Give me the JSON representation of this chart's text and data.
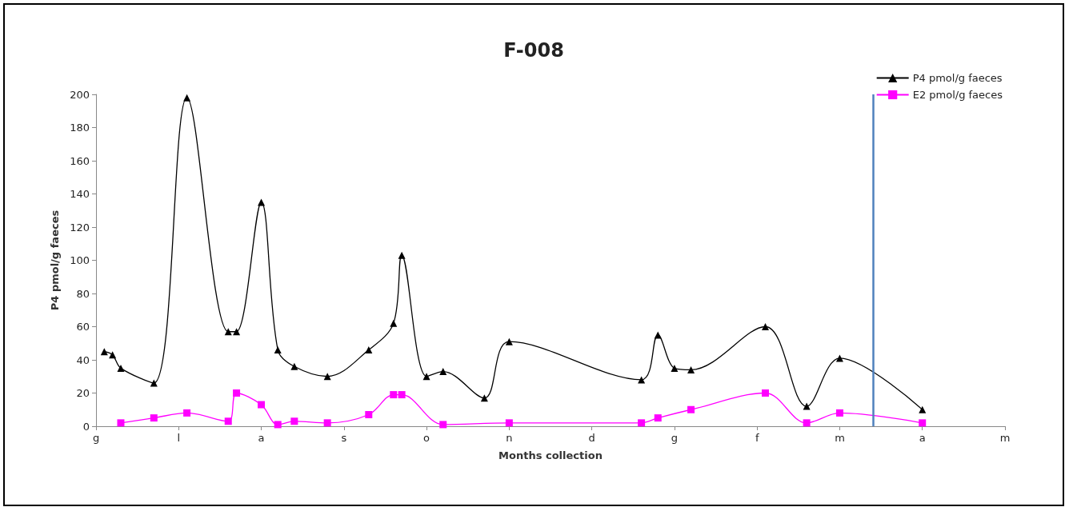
{
  "chart_data": {
    "type": "line",
    "title": "F-008",
    "xlabel": "Months collection",
    "ylabel": "P4 pmol/g faeces",
    "categories": [
      "g",
      null,
      null,
      null,
      null,
      null,
      null,
      null,
      null,
      null,
      "l",
      null,
      null,
      null,
      null,
      null,
      null,
      null,
      null,
      null,
      "a",
      null,
      null,
      null,
      null,
      null,
      null,
      null,
      null,
      null,
      "s",
      null,
      null,
      null,
      null,
      null,
      null,
      null,
      null,
      null,
      "o",
      null,
      null,
      null,
      null,
      null,
      null,
      null,
      null,
      null,
      "n",
      null,
      null,
      null,
      null,
      null,
      null,
      null,
      null,
      null,
      "d",
      null,
      null,
      null,
      null,
      null,
      null,
      null,
      null,
      null,
      "g",
      null,
      null,
      null,
      null,
      null,
      null,
      null,
      null,
      null,
      "f",
      null,
      null,
      null,
      null,
      null,
      null,
      null,
      null,
      null,
      "m",
      null,
      null,
      null,
      null,
      null,
      null,
      null,
      null,
      null,
      "a",
      null,
      null,
      null,
      null,
      null,
      null,
      null,
      null,
      null,
      "m"
    ],
    "ylim": [
      0,
      200
    ],
    "yticks": [
      0,
      20,
      40,
      60,
      80,
      100,
      120,
      140,
      160,
      180,
      200
    ],
    "grid": false,
    "legend": "top right",
    "series": [
      {
        "name": "P4 pmol/g faeces",
        "color": "#000000",
        "marker": "triangle",
        "values": [
          null,
          45,
          43,
          35,
          null,
          null,
          null,
          26,
          null,
          null,
          null,
          198,
          null,
          null,
          null,
          null,
          57,
          57,
          null,
          null,
          135,
          null,
          46,
          null,
          36,
          null,
          null,
          null,
          30,
          null,
          null,
          null,
          null,
          46,
          null,
          null,
          62,
          103,
          null,
          null,
          30,
          null,
          33,
          null,
          null,
          null,
          null,
          17,
          null,
          null,
          51,
          null,
          null,
          null,
          null,
          null,
          null,
          null,
          null,
          null,
          null,
          null,
          null,
          null,
          null,
          null,
          28,
          null,
          55,
          null,
          35,
          null,
          34,
          null,
          null,
          null,
          null,
          null,
          null,
          null,
          null,
          60,
          null,
          null,
          null,
          null,
          12,
          null,
          null,
          null,
          41,
          null,
          null,
          null,
          null,
          null,
          null,
          null,
          null,
          null,
          10,
          null,
          null,
          null,
          null,
          null,
          null,
          null,
          null,
          null,
          null
        ]
      },
      {
        "name": "E2 pmol/g faeces",
        "color": "#ff00ff",
        "marker": "square",
        "values": [
          null,
          null,
          null,
          2,
          null,
          null,
          null,
          5,
          null,
          null,
          null,
          8,
          null,
          null,
          null,
          null,
          3,
          20,
          null,
          null,
          13,
          null,
          1,
          null,
          3,
          null,
          null,
          null,
          2,
          null,
          null,
          null,
          null,
          7,
          null,
          null,
          19,
          19,
          null,
          null,
          null,
          null,
          1,
          null,
          null,
          null,
          null,
          null,
          null,
          null,
          2,
          null,
          null,
          null,
          null,
          null,
          null,
          null,
          null,
          null,
          null,
          null,
          null,
          null,
          null,
          null,
          2,
          null,
          5,
          null,
          null,
          null,
          10,
          null,
          null,
          null,
          null,
          null,
          null,
          null,
          null,
          20,
          null,
          null,
          null,
          null,
          2,
          null,
          null,
          null,
          8,
          null,
          null,
          null,
          null,
          null,
          null,
          null,
          null,
          null,
          2,
          null,
          null,
          null,
          null,
          null,
          null,
          null,
          null,
          null,
          null
        ]
      }
    ]
  }
}
